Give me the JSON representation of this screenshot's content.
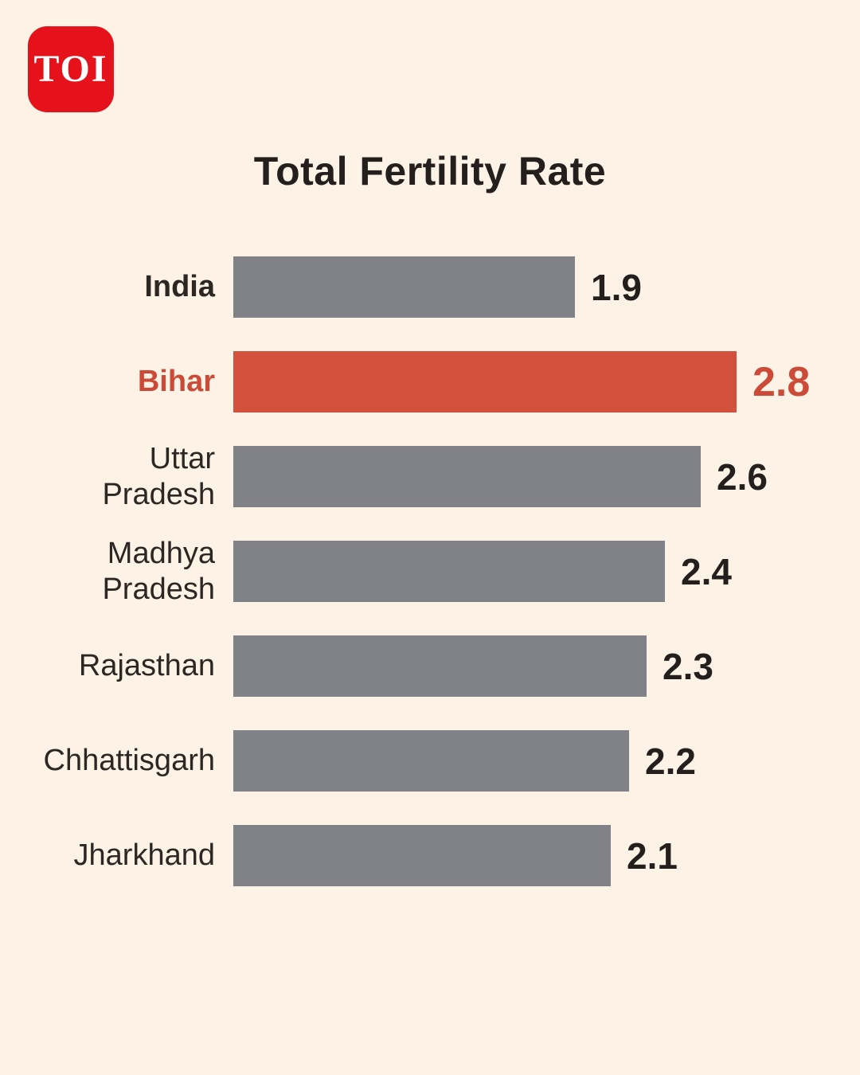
{
  "page": {
    "background": "#fcf3e6"
  },
  "logo": {
    "text": "TOI",
    "background": "#e5121c",
    "text_color": "#ffffff"
  },
  "chart_data": {
    "type": "bar",
    "orientation": "horizontal",
    "title": "Total Fertility Rate",
    "categories": [
      "India",
      "Bihar",
      "Uttar Pradesh",
      "Madhya Pradesh",
      "Rajasthan",
      "Chhattisgarh",
      "Jharkhand"
    ],
    "values": [
      1.9,
      2.8,
      2.6,
      2.4,
      2.3,
      2.2,
      2.1
    ],
    "xlim": [
      0,
      3.0
    ],
    "legend": "none",
    "grid": false,
    "rows": [
      {
        "label_lines": [
          "India"
        ],
        "display_value": "1.9",
        "bold_label": true,
        "highlight": false
      },
      {
        "label_lines": [
          "Bihar"
        ],
        "display_value": "2.8",
        "bold_label": true,
        "highlight": true
      },
      {
        "label_lines": [
          "Uttar",
          "Pradesh"
        ],
        "display_value": "2.6",
        "bold_label": false,
        "highlight": false
      },
      {
        "label_lines": [
          "Madhya",
          "Pradesh"
        ],
        "display_value": "2.4",
        "bold_label": false,
        "highlight": false
      },
      {
        "label_lines": [
          "Rajasthan"
        ],
        "display_value": "2.3",
        "bold_label": false,
        "highlight": false
      },
      {
        "label_lines": [
          "Chhattisgarh"
        ],
        "display_value": "2.2",
        "bold_label": false,
        "highlight": false
      },
      {
        "label_lines": [
          "Jharkhand"
        ],
        "display_value": "2.1",
        "bold_label": false,
        "highlight": false
      }
    ],
    "colors": {
      "bar_default": "#818287",
      "bar_highlight": "#d3513c",
      "label_text": "#2d2724",
      "label_highlight_text": "#cc4b38",
      "value_text": "#241f1d",
      "value_highlight_text": "#cc4b38",
      "title_text": "#241f1d"
    }
  }
}
